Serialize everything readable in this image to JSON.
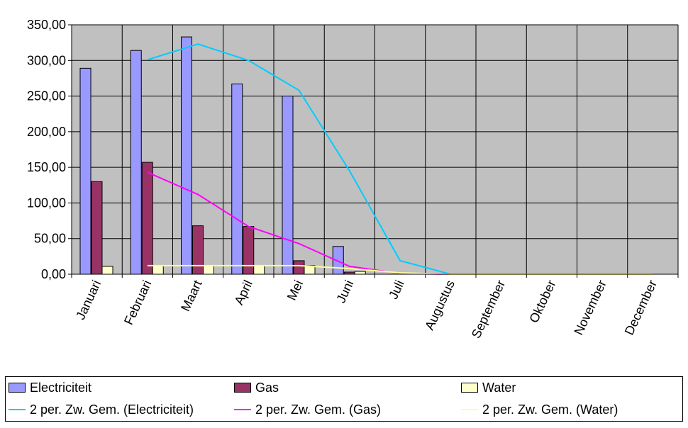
{
  "chart_data": {
    "type": "bar",
    "categories": [
      "Januari",
      "Februari",
      "Maart",
      "April",
      "Mei",
      "Juni",
      "Juli",
      "Augustus",
      "September",
      "Oktober",
      "November",
      "December"
    ],
    "ylim": [
      0,
      350
    ],
    "ytick_labels": [
      "0,00",
      "50,00",
      "100,00",
      "150,00",
      "200,00",
      "250,00",
      "300,00",
      "350,00"
    ],
    "ytick_values": [
      0,
      50,
      100,
      150,
      200,
      250,
      300,
      350
    ],
    "grid": true,
    "legend_position": "bottom",
    "plot_background": "#c0c0c0",
    "series": [
      {
        "name": "Electriciteit",
        "kind": "bar",
        "color": "#9999ff",
        "values": [
          289,
          314,
          333,
          267,
          250,
          39,
          0,
          0,
          0,
          0,
          0,
          0
        ]
      },
      {
        "name": "Gas",
        "kind": "bar",
        "color": "#993366",
        "values": [
          130,
          157,
          68,
          67,
          19,
          3,
          0,
          0,
          0,
          0,
          0,
          0
        ]
      },
      {
        "name": "Water",
        "kind": "bar",
        "color": "#ffffcc",
        "values": [
          11,
          12,
          12,
          12,
          12,
          4,
          0,
          0,
          0,
          0,
          0,
          0
        ]
      },
      {
        "name": "2 per. Zw. Gem. (Electriciteit)",
        "kind": "line",
        "color": "#00ccff",
        "values": [
          null,
          301,
          323,
          300,
          258,
          145,
          19,
          0,
          0,
          0,
          0,
          0
        ]
      },
      {
        "name": "2 per. Zw. Gem. (Gas)",
        "kind": "line",
        "color": "#ff00ff",
        "values": [
          null,
          143,
          112,
          67,
          43,
          11,
          1,
          0,
          0,
          0,
          0,
          0
        ]
      },
      {
        "name": "2 per. Zw. Gem. (Water)",
        "kind": "line",
        "color": "#ffff99",
        "values": [
          null,
          12,
          12,
          12,
          12,
          8,
          2,
          0,
          0,
          0,
          0,
          0
        ]
      }
    ]
  }
}
